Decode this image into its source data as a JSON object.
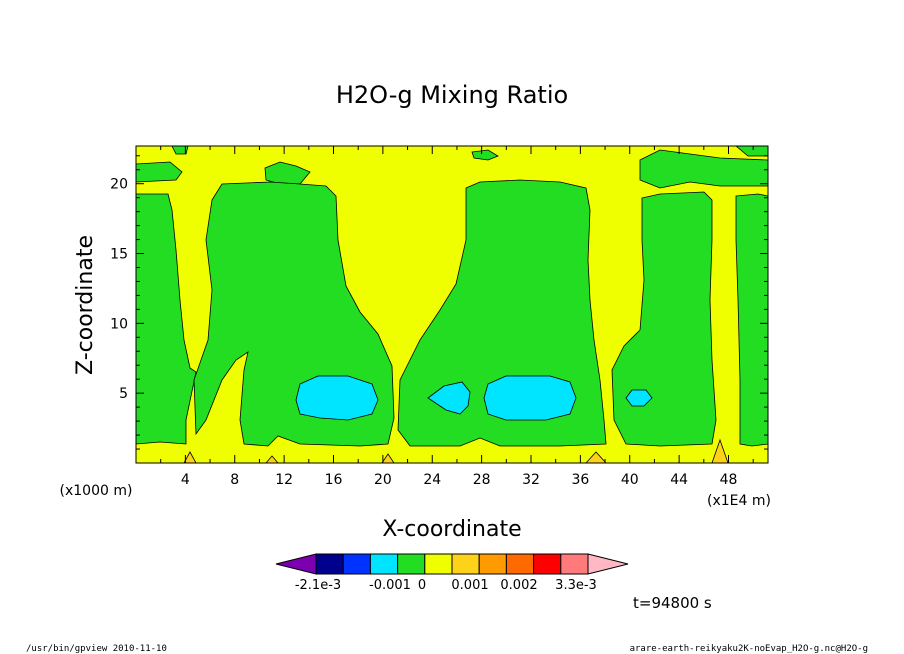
{
  "chart_data": {
    "type": "heatmap",
    "title": "H2O-g Mixing Ratio",
    "xlabel": "X-coordinate",
    "ylabel": "Z-coordinate",
    "x_unit_label": "(x1E4 m)",
    "z_unit_label": "(x1000 m)",
    "x_ticks": [
      "4",
      "8",
      "12",
      "16",
      "20",
      "24",
      "28",
      "32",
      "36",
      "40",
      "44",
      "48"
    ],
    "z_ticks": [
      "5",
      "10",
      "15",
      "20"
    ],
    "xlim": [
      0,
      51.2
    ],
    "zlim": [
      0,
      22.7
    ],
    "colorbar": {
      "labels": [
        "-2.1e-3",
        "-0.001",
        "0",
        "0.001",
        "0.002",
        "3.3e-3"
      ],
      "colors": [
        "#7a00b0",
        "#00008f",
        "#0033ff",
        "#00e5ff",
        "#22dd22",
        "#f0ff00",
        "#ffd21a",
        "#ff9a00",
        "#ff6a00",
        "#ff0000",
        "#ff7b7b",
        "#ffb8c4"
      ]
    },
    "time_label": "t=94800 s",
    "region_colors": {
      "background": "#f0ff00",
      "low": "#22dd22",
      "lowest": "#00e5ff",
      "high": "#ffd21a"
    },
    "regions": [
      {
        "level": "low",
        "label": "green column A",
        "x_range": [
          0,
          5
        ],
        "z_range": [
          1.2,
          19.5
        ]
      },
      {
        "level": "low",
        "label": "green column B",
        "x_range": [
          6,
          21
        ],
        "z_range": [
          1.2,
          20.3
        ]
      },
      {
        "level": "low",
        "label": "green column C",
        "x_range": [
          22,
          37
        ],
        "z_range": [
          1.2,
          20.3
        ]
      },
      {
        "level": "low",
        "label": "green column D",
        "x_range": [
          38,
          46
        ],
        "z_range": [
          1.2,
          19.8
        ]
      },
      {
        "level": "low",
        "label": "green column E",
        "x_range": [
          48,
          51.2
        ],
        "z_range": [
          1.2,
          19.8
        ]
      },
      {
        "level": "lowest",
        "label": "cyan blob 1",
        "center": [
          17.3,
          4.8
        ],
        "radius": [
          3.3,
          1.6
        ]
      },
      {
        "level": "lowest",
        "label": "cyan blob 2",
        "center": [
          25.1,
          4.9
        ],
        "radius": [
          1.8,
          1.1
        ]
      },
      {
        "level": "lowest",
        "label": "cyan blob 3",
        "center": [
          31.3,
          4.8
        ],
        "radius": [
          3.6,
          1.6
        ]
      },
      {
        "level": "lowest",
        "label": "cyan blob 4",
        "center": [
          40.6,
          4.6
        ],
        "radius": [
          1.0,
          0.7
        ]
      }
    ]
  },
  "footer": {
    "left": "/usr/bin/gpview 2010-11-10",
    "right": "arare-earth-reikyaku2K-noEvap_H2O-g.nc@H2O-g"
  }
}
